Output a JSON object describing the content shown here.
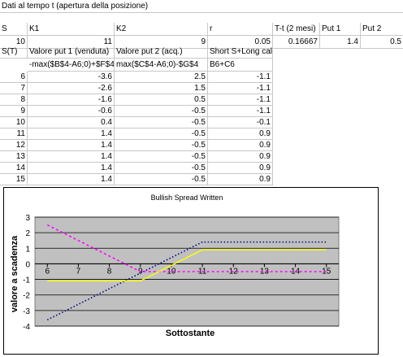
{
  "sheet": {
    "title": "Dati al tempo t (apertura della posizione)",
    "header_row": [
      "S",
      "K1",
      "K2",
      "r",
      "T-t (2 mesi)",
      "Put 1",
      "Put 2"
    ],
    "value_row": [
      "10",
      "11",
      "9",
      "0.05",
      "0.16667",
      "1.4",
      "0.5"
    ],
    "col_header_row": [
      "S(T)",
      "Valore put 1 (venduta)",
      "Valore put 2 (acq.)",
      "Short S+Long call"
    ],
    "formula_row": [
      "-max($B$4-A6;0)+$F$4",
      "max($C$4-A6;0)-$G$4",
      "B6+C6"
    ],
    "rows": [
      [
        "6",
        "-3.6",
        "2.5",
        "-1.1"
      ],
      [
        "7",
        "-2.6",
        "1.5",
        "-1.1"
      ],
      [
        "8",
        "-1.6",
        "0.5",
        "-1.1"
      ],
      [
        "9",
        "-0.6",
        "-0.5",
        "-1.1"
      ],
      [
        "10",
        "0.4",
        "-0.5",
        "-0.1"
      ],
      [
        "11",
        "1.4",
        "-0.5",
        "0.9"
      ],
      [
        "12",
        "1.4",
        "-0.5",
        "0.9"
      ],
      [
        "13",
        "1.4",
        "-0.5",
        "0.9"
      ],
      [
        "14",
        "1.4",
        "-0.5",
        "0.9"
      ],
      [
        "15",
        "1.4",
        "-0.5",
        "0.9"
      ]
    ]
  },
  "chart_data": {
    "type": "line",
    "title": "Bullish Spread Written",
    "xlabel": "Sottostante",
    "ylabel": "valore a scadenza",
    "x": [
      6,
      7,
      8,
      9,
      10,
      11,
      12,
      13,
      14,
      15
    ],
    "xlim": [
      6,
      15
    ],
    "ylim": [
      -4,
      3
    ],
    "yticks": [
      -4,
      -3,
      -2,
      -1,
      0,
      1,
      2,
      3
    ],
    "grid": true,
    "plot_background": "#c0c0c0",
    "series": [
      {
        "values": [
          -3.6,
          -2.6,
          -1.6,
          -0.6,
          0.4,
          1.4,
          1.4,
          1.4,
          1.4,
          1.4
        ],
        "color": "#000080",
        "style": "dotted"
      },
      {
        "values": [
          2.5,
          1.5,
          0.5,
          -0.5,
          -0.5,
          -0.5,
          -0.5,
          -0.5,
          -0.5,
          -0.5
        ],
        "color": "#ff00ff",
        "style": "dashed"
      },
      {
        "values": [
          -1.1,
          -1.1,
          -1.1,
          -1.1,
          -0.1,
          0.9,
          0.9,
          0.9,
          0.9,
          0.9
        ],
        "color": "#ffff00",
        "style": "solid"
      }
    ]
  }
}
